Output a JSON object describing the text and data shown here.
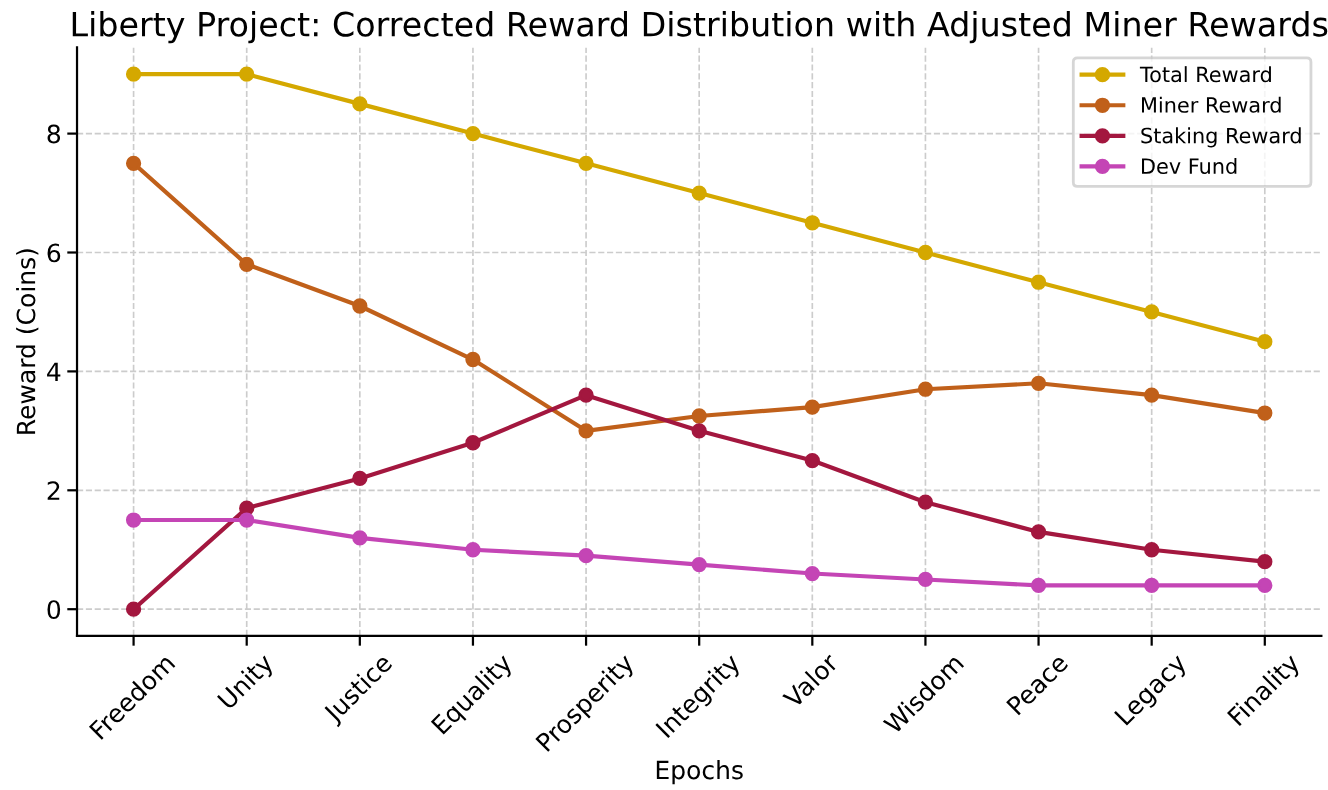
{
  "chart_data": {
    "type": "line",
    "title": "Liberty Project: Corrected Reward Distribution with Adjusted Miner Rewards",
    "xlabel": "Epochs",
    "ylabel": "Reward (Coins)",
    "categories": [
      "Freedom",
      "Unity",
      "Justice",
      "Equality",
      "Prosperity",
      "Integrity",
      "Valor",
      "Wisdom",
      "Peace",
      "Legacy",
      "Finality"
    ],
    "series": [
      {
        "name": "Total Reward",
        "color": "#d4a800",
        "values": [
          9,
          9,
          8.5,
          8,
          7.5,
          7,
          6.5,
          6,
          5.5,
          5,
          4.5
        ]
      },
      {
        "name": "Miner Reward",
        "color": "#c0601a",
        "values": [
          7.5,
          5.8,
          5.1,
          4.2,
          3.0,
          3.25,
          3.4,
          3.7,
          3.8,
          3.6,
          3.3
        ]
      },
      {
        "name": "Staking Reward",
        "color": "#a3173f",
        "values": [
          0,
          1.7,
          2.2,
          2.8,
          3.6,
          3.0,
          2.5,
          1.8,
          1.3,
          1.0,
          0.8
        ]
      },
      {
        "name": "Dev Fund",
        "color": "#c445b5",
        "values": [
          1.5,
          1.5,
          1.2,
          1.0,
          0.9,
          0.75,
          0.6,
          0.5,
          0.4,
          0.4,
          0.4
        ]
      }
    ],
    "ylim": [
      -0.45,
      9.45
    ],
    "yticks": [
      0,
      2,
      4,
      6,
      8
    ],
    "grid": true,
    "legend": "top right",
    "marker": "circle",
    "line_style": "solid"
  }
}
